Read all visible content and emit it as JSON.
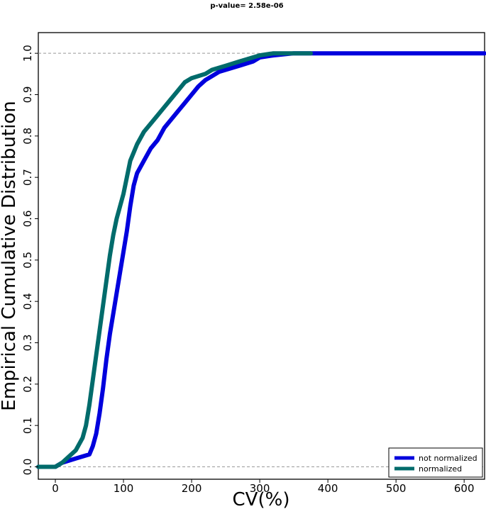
{
  "chart_data": {
    "type": "line",
    "title": "p-value= 2.58e-06",
    "xlabel": "CV(%)",
    "ylabel": "Empirical Cumulative Distribution",
    "xlim": [
      -25,
      630
    ],
    "ylim": [
      -0.03,
      1.05
    ],
    "xticks": [
      0,
      100,
      200,
      300,
      400,
      500,
      600
    ],
    "yticks": [
      0.0,
      0.1,
      0.2,
      0.3,
      0.4,
      0.5,
      0.6,
      0.7,
      0.8,
      0.9,
      1.0
    ],
    "reference_lines": [
      0,
      1
    ],
    "legend_position": "bottom-right",
    "series": [
      {
        "name": "not normalized",
        "color": "#0000dd",
        "x": [
          -25,
          0,
          10,
          20,
          30,
          40,
          50,
          55,
          60,
          65,
          70,
          75,
          80,
          85,
          90,
          95,
          100,
          105,
          110,
          115,
          120,
          130,
          140,
          150,
          160,
          170,
          180,
          190,
          200,
          210,
          220,
          230,
          240,
          250,
          260,
          270,
          280,
          290,
          300,
          320,
          350,
          400,
          500,
          630
        ],
        "y": [
          0,
          0,
          0.01,
          0.015,
          0.02,
          0.025,
          0.03,
          0.05,
          0.08,
          0.13,
          0.19,
          0.26,
          0.32,
          0.37,
          0.42,
          0.47,
          0.52,
          0.57,
          0.63,
          0.68,
          0.71,
          0.74,
          0.77,
          0.79,
          0.82,
          0.84,
          0.86,
          0.88,
          0.9,
          0.92,
          0.935,
          0.945,
          0.955,
          0.96,
          0.965,
          0.97,
          0.975,
          0.98,
          0.99,
          0.995,
          1.0,
          1.0,
          1.0,
          1.0
        ]
      },
      {
        "name": "normalized",
        "color": "#006b6b",
        "x": [
          -25,
          0,
          10,
          20,
          30,
          40,
          45,
          50,
          55,
          60,
          65,
          70,
          75,
          80,
          85,
          90,
          95,
          100,
          105,
          110,
          115,
          120,
          130,
          140,
          150,
          160,
          170,
          180,
          190,
          200,
          210,
          220,
          230,
          240,
          250,
          260,
          270,
          280,
          290,
          300,
          320,
          350,
          375
        ],
        "y": [
          0,
          0,
          0.01,
          0.025,
          0.04,
          0.07,
          0.1,
          0.15,
          0.21,
          0.27,
          0.33,
          0.39,
          0.45,
          0.51,
          0.56,
          0.6,
          0.63,
          0.66,
          0.7,
          0.74,
          0.76,
          0.78,
          0.81,
          0.83,
          0.85,
          0.87,
          0.89,
          0.91,
          0.93,
          0.94,
          0.945,
          0.95,
          0.96,
          0.965,
          0.97,
          0.975,
          0.98,
          0.985,
          0.99,
          0.995,
          1.0,
          1.0,
          1.0
        ]
      }
    ]
  }
}
